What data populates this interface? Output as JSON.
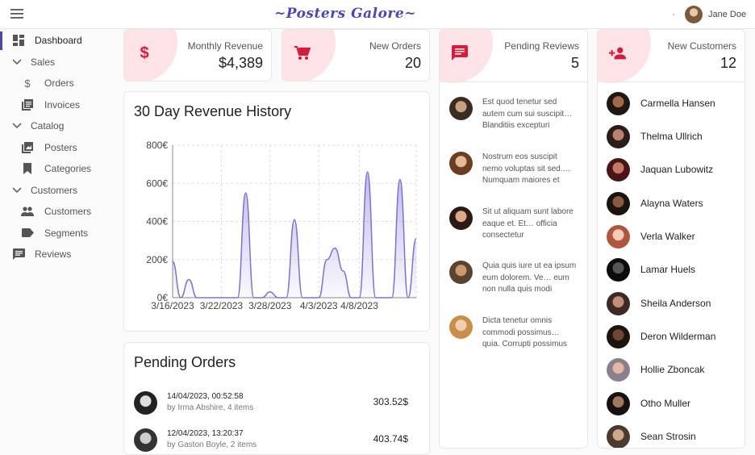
{
  "app": {
    "title": "~Posters Galore~",
    "user_name": "Jane Doe"
  },
  "sidebar": {
    "items": [
      {
        "label": "Dashboard",
        "icon": "dashboard-icon",
        "active": true
      },
      {
        "label": "Sales",
        "icon": "chevron-down-icon"
      },
      {
        "label": "Orders",
        "icon": "dollar-icon"
      },
      {
        "label": "Invoices",
        "icon": "invoice-icon"
      },
      {
        "label": "Catalog",
        "icon": "chevron-down-icon"
      },
      {
        "label": "Posters",
        "icon": "image-icon"
      },
      {
        "label": "Categories",
        "icon": "bookmark-icon"
      },
      {
        "label": "Customers",
        "icon": "chevron-down-icon"
      },
      {
        "label": "Customers",
        "icon": "people-icon"
      },
      {
        "label": "Segments",
        "icon": "label-icon"
      },
      {
        "label": "Reviews",
        "icon": "comment-icon"
      }
    ]
  },
  "kpis": {
    "revenue": {
      "label": "Monthly Revenue",
      "value": "$4,389",
      "icon": "dollar-icon"
    },
    "orders": {
      "label": "New Orders",
      "value": "20",
      "icon": "cart-icon"
    },
    "reviews": {
      "label": "Pending Reviews",
      "value": "5",
      "icon": "comment-icon"
    },
    "customers": {
      "label": "New Customers",
      "value": "12",
      "icon": "person-add-icon"
    }
  },
  "revenue_chart": {
    "title": "30 Day Revenue History"
  },
  "chart_data": {
    "type": "area",
    "title": "30 Day Revenue History",
    "xlabel": "",
    "ylabel": "",
    "x_ticks": [
      "3/16/2023",
      "3/22/2023",
      "3/28/2023",
      "4/3/2023",
      "4/8/2023"
    ],
    "y_ticks": [
      "800€",
      "600€",
      "400€",
      "200€",
      "0€"
    ],
    "ylim": [
      0,
      800
    ],
    "grid": true,
    "series": [
      {
        "values": [
          190,
          0,
          95,
          0,
          0,
          0,
          0,
          0,
          0,
          550,
          0,
          0,
          30,
          0,
          0,
          410,
          0,
          0,
          0,
          200,
          260,
          140,
          0,
          0,
          660,
          0,
          0,
          0,
          620,
          0,
          310
        ]
      }
    ],
    "color": "#7b74d0"
  },
  "reviews": [
    {
      "text": "Est quod tenetur sed autem cum sui suscipit… Blanditiis excepturi"
    },
    {
      "text": "Nostrum eos suscipit nemo voluptas sit sed.… Numquam maiores et"
    },
    {
      "text": "Sit ut aliquam sunt labore eaque et. Et… officia consectetur"
    },
    {
      "text": "Quia quis iure ut ea ipsum eum dolorem. Ve… eum non nulla quis modi"
    },
    {
      "text": "Dicta tenetur omnis commodi possimus… quia. Corrupti possimus"
    }
  ],
  "customers": [
    {
      "name": "Carmella Hansen"
    },
    {
      "name": "Thelma Ullrich"
    },
    {
      "name": "Jaquan Lubowitz"
    },
    {
      "name": "Alayna Waters"
    },
    {
      "name": "Verla Walker"
    },
    {
      "name": "Lamar Huels"
    },
    {
      "name": "Sheila Anderson"
    },
    {
      "name": "Deron Wilderman"
    },
    {
      "name": "Hollie Zboncak"
    },
    {
      "name": "Otho Muller"
    },
    {
      "name": "Sean Strosin"
    }
  ],
  "pending_orders": {
    "title": "Pending Orders",
    "rows": [
      {
        "date": "14/04/2023, 00:52:58",
        "by": "by Irma Abshire, 4 items",
        "total": "303.52$"
      },
      {
        "date": "12/04/2023, 13:20:37",
        "by": "by Gaston Boyle, 2 items",
        "total": "403.74$"
      }
    ]
  }
}
